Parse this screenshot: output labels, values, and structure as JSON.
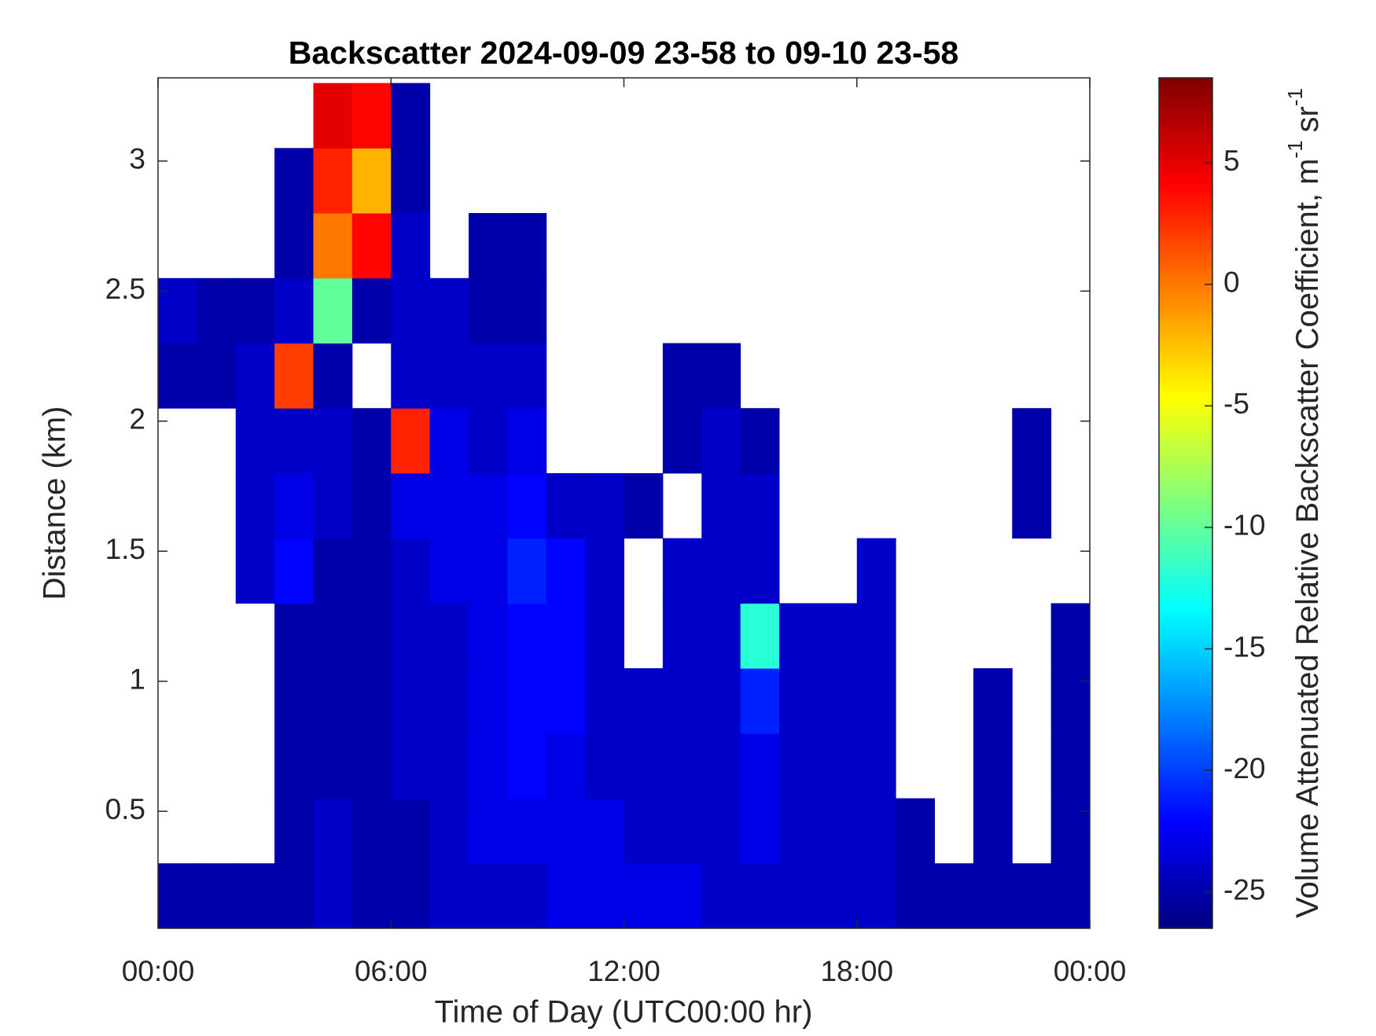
{
  "chart_data": {
    "type": "heatmap",
    "title": "Backscatter 2024-09-09 23-58 to 09-10 23-58",
    "x_label": "Time of Day (UTC00:00 hr)",
    "y_label": "Distance (km)",
    "colorbar_label": [
      "Volume Attenuated Relative Backscatter Coefficient, m",
      "-1",
      "sr",
      "-1"
    ],
    "colormap": "jet",
    "xlim": [
      0,
      24
    ],
    "xticks": [
      {
        "value": 0,
        "label": "00:00"
      },
      {
        "value": 6,
        "label": "06:00"
      },
      {
        "value": 12,
        "label": "12:00"
      },
      {
        "value": 18,
        "label": "18:00"
      },
      {
        "value": 24,
        "label": "00:00"
      }
    ],
    "ylim": [
      0.05,
      3.32
    ],
    "yticks": [
      0.5,
      1,
      1.5,
      2,
      2.5,
      3
    ],
    "clim": [
      -26.5,
      8.5
    ],
    "cticks": [
      -25,
      -20,
      -15,
      -10,
      -5,
      0,
      5
    ],
    "x_bins": [
      0,
      1,
      2,
      3,
      4,
      5,
      6,
      7,
      8,
      9,
      10,
      11,
      12,
      13,
      14,
      15,
      16,
      17,
      18,
      19,
      20,
      21,
      22,
      23,
      24
    ],
    "y_bins": [
      0.05,
      0.3,
      0.55,
      0.8,
      1.05,
      1.3,
      1.55,
      1.8,
      2.05,
      2.3,
      2.55,
      2.8,
      3.05,
      3.3
    ],
    "z": [
      [
        -25,
        -25,
        -25,
        -25,
        -24,
        -25,
        -25,
        -24,
        -24,
        -24,
        -23,
        -23,
        -23,
        -23,
        -24,
        -24,
        -24,
        -24,
        -24,
        -25,
        -25,
        -25,
        -25,
        -25
      ],
      [
        null,
        null,
        null,
        -25,
        -24,
        -25,
        -25,
        -24,
        -23,
        -23,
        -23,
        -23,
        -24,
        -24,
        -24,
        -23,
        -24,
        -24,
        -24,
        -25,
        null,
        -25,
        null,
        -25
      ],
      [
        null,
        null,
        null,
        -25,
        -25,
        -25,
        -24,
        -24,
        -23,
        -22,
        -23,
        -24,
        -24,
        -24,
        -24,
        -23,
        -24,
        -24,
        -24,
        null,
        null,
        -25,
        null,
        -25
      ],
      [
        null,
        null,
        null,
        -25,
        -25,
        -25,
        -24,
        -24,
        -23,
        -22,
        -22,
        -24,
        -24,
        -24,
        -24,
        -21,
        -24,
        -24,
        -24,
        null,
        null,
        -25,
        null,
        -25
      ],
      [
        null,
        null,
        null,
        -25,
        -25,
        -25,
        -24,
        -24,
        -23,
        -22,
        -22,
        -24,
        null,
        -24,
        -24,
        -12,
        -24,
        -24,
        -24,
        null,
        null,
        null,
        null,
        -25
      ],
      [
        null,
        null,
        -24,
        -22,
        -25,
        -25,
        -24,
        -23,
        -23,
        -21,
        -22,
        -24,
        null,
        -24,
        -24,
        -24,
        null,
        null,
        -24,
        null,
        null,
        null,
        null,
        null
      ],
      [
        null,
        null,
        -24,
        -23,
        -24,
        -25,
        -23,
        -23,
        -23,
        -22,
        -24,
        -24,
        -25,
        null,
        -24,
        -24,
        null,
        null,
        null,
        null,
        null,
        null,
        -25,
        null
      ],
      [
        null,
        null,
        -24,
        -24,
        -24,
        -25,
        3,
        -23,
        -24,
        -23,
        null,
        null,
        null,
        -25,
        -24,
        -25,
        null,
        null,
        null,
        null,
        null,
        null,
        -25,
        null
      ],
      [
        -25,
        -25,
        -24,
        2,
        -25,
        null,
        -24,
        -24,
        -24,
        -24,
        null,
        null,
        null,
        -25,
        -25,
        null,
        null,
        null,
        null,
        null,
        null,
        null,
        null,
        null
      ],
      [
        -24,
        -25,
        -25,
        -24,
        -10,
        -25,
        -24,
        -24,
        -25,
        -25,
        null,
        null,
        null,
        null,
        null,
        null,
        null,
        null,
        null,
        null,
        null,
        null,
        null,
        null
      ],
      [
        null,
        null,
        null,
        -25,
        0,
        4,
        -24,
        null,
        -25,
        -25,
        null,
        null,
        null,
        null,
        null,
        null,
        null,
        null,
        null,
        null,
        null,
        null,
        null,
        null
      ],
      [
        null,
        null,
        null,
        -25,
        3,
        -2,
        -25,
        null,
        null,
        null,
        null,
        null,
        null,
        null,
        null,
        null,
        null,
        null,
        null,
        null,
        null,
        null,
        null,
        null
      ],
      [
        null,
        null,
        null,
        null,
        5,
        4,
        -25,
        null,
        null,
        null,
        null,
        null,
        null,
        null,
        null,
        null,
        null,
        null,
        null,
        null,
        null,
        null,
        null,
        null
      ]
    ]
  }
}
